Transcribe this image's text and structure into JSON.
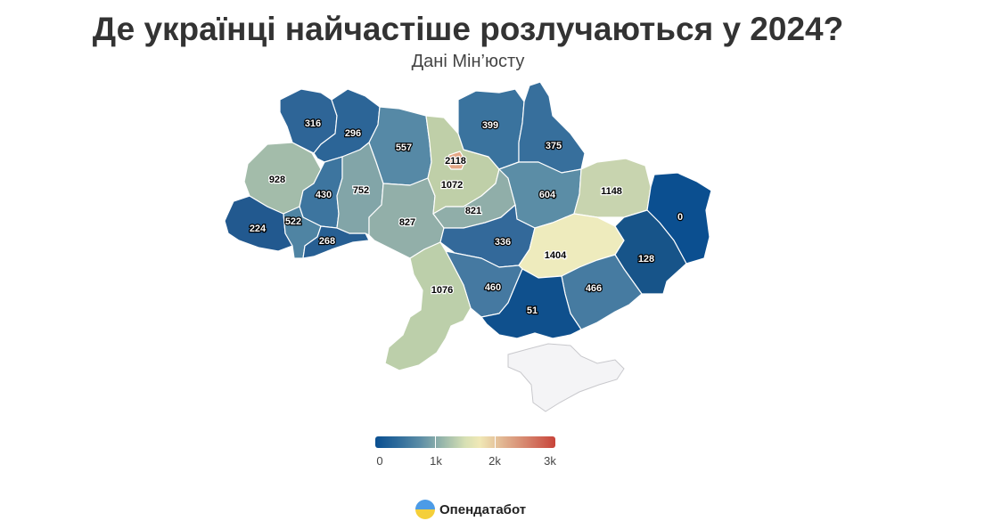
{
  "header": {
    "title": "Де українці найчастіше розлучаються у 2024?",
    "subtitle": "Дані Мін’юсту"
  },
  "map": {
    "regions": [
      {
        "id": "volyn",
        "value": 316,
        "color": "#2e6597"
      },
      {
        "id": "rivne",
        "value": 296,
        "color": "#2c6597"
      },
      {
        "id": "zhytomyr",
        "value": 557,
        "color": "#5689a6"
      },
      {
        "id": "kyiv-oblast",
        "value": 1072,
        "color": "#bfcfa8"
      },
      {
        "id": "kyiv-city",
        "value": 2118,
        "color": "#e4a785"
      },
      {
        "id": "chernihiv",
        "value": 399,
        "color": "#3a739e"
      },
      {
        "id": "sumy",
        "value": 375,
        "color": "#376f9c"
      },
      {
        "id": "lviv",
        "value": 928,
        "color": "#a3bcaa"
      },
      {
        "id": "ternopil",
        "value": 430,
        "color": "#3d759f"
      },
      {
        "id": "khmelnytskyi",
        "value": 752,
        "color": "#82a5a8"
      },
      {
        "id": "vinnytsia",
        "value": 827,
        "color": "#92afa9"
      },
      {
        "id": "cherkasy",
        "value": 821,
        "color": "#90aea9"
      },
      {
        "id": "poltava",
        "value": 604,
        "color": "#5b8da6"
      },
      {
        "id": "kharkiv",
        "value": 1148,
        "color": "#c8d4af"
      },
      {
        "id": "luhansk",
        "value": 0,
        "color": "#0b4f90"
      },
      {
        "id": "zakarpattia",
        "value": 224,
        "color": "#22598f"
      },
      {
        "id": "ivano-frankivsk",
        "value": 522,
        "color": "#4f84a3"
      },
      {
        "id": "chernivtsi",
        "value": 268,
        "color": "#275f93"
      },
      {
        "id": "kirovohrad",
        "value": 336,
        "color": "#33699a"
      },
      {
        "id": "dnipropetrovsk",
        "value": 1404,
        "color": "#eeebbd"
      },
      {
        "id": "donetsk",
        "value": 128,
        "color": "#175489"
      },
      {
        "id": "odesa",
        "value": 1076,
        "color": "#bccfaa"
      },
      {
        "id": "mykolaiv",
        "value": 460,
        "color": "#4579a1"
      },
      {
        "id": "zaporizhzhia",
        "value": 466,
        "color": "#467ba1"
      },
      {
        "id": "kherson",
        "value": 51,
        "color": "#0f508d"
      },
      {
        "id": "crimea",
        "value": null,
        "color": "#f4f4f6"
      }
    ]
  },
  "legend": {
    "min": 0,
    "max": 3000,
    "tick_labels": [
      "0",
      "1k",
      "2k",
      "3k"
    ],
    "color_start": "#0a4f90",
    "color_mid": "#f0e8b6",
    "color_end": "#c8443a"
  },
  "brand": {
    "name": "Опендатабот"
  }
}
